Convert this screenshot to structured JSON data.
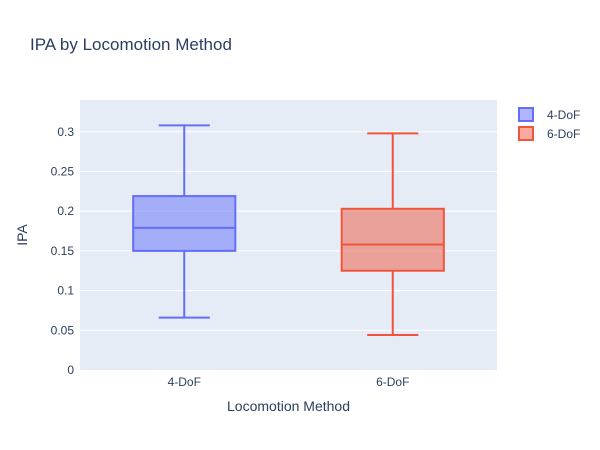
{
  "chart_data": {
    "type": "box",
    "title": "IPA by Locomotion Method",
    "xlabel": "Locomotion Method",
    "ylabel": "IPA",
    "categories": [
      "4-DoF",
      "6-DoF"
    ],
    "ylim": [
      0,
      0.34
    ],
    "yticks": [
      0,
      0.05,
      0.1,
      0.15,
      0.2,
      0.25,
      0.3
    ],
    "ytick_labels": [
      "0",
      "0.05",
      "0.1",
      "0.15",
      "0.2",
      "0.25",
      "0.3"
    ],
    "grid": true,
    "legend_position": "top-right",
    "series": [
      {
        "name": "4-DoF",
        "category": "4-DoF",
        "min": 0.066,
        "q1": 0.15,
        "median": 0.179,
        "q3": 0.219,
        "max": 0.308,
        "line_color": "#636efa",
        "fill_color": "rgba(99,110,250,0.5)"
      },
      {
        "name": "6-DoF",
        "category": "6-DoF",
        "min": 0.044,
        "q1": 0.125,
        "median": 0.158,
        "q3": 0.203,
        "max": 0.298,
        "line_color": "#EF553B",
        "fill_color": "rgba(239,85,59,0.5)"
      }
    ]
  },
  "colors": {
    "plot_background": "#E5ECF6",
    "grid": "#ffffff",
    "text": "#2a3f5f"
  }
}
